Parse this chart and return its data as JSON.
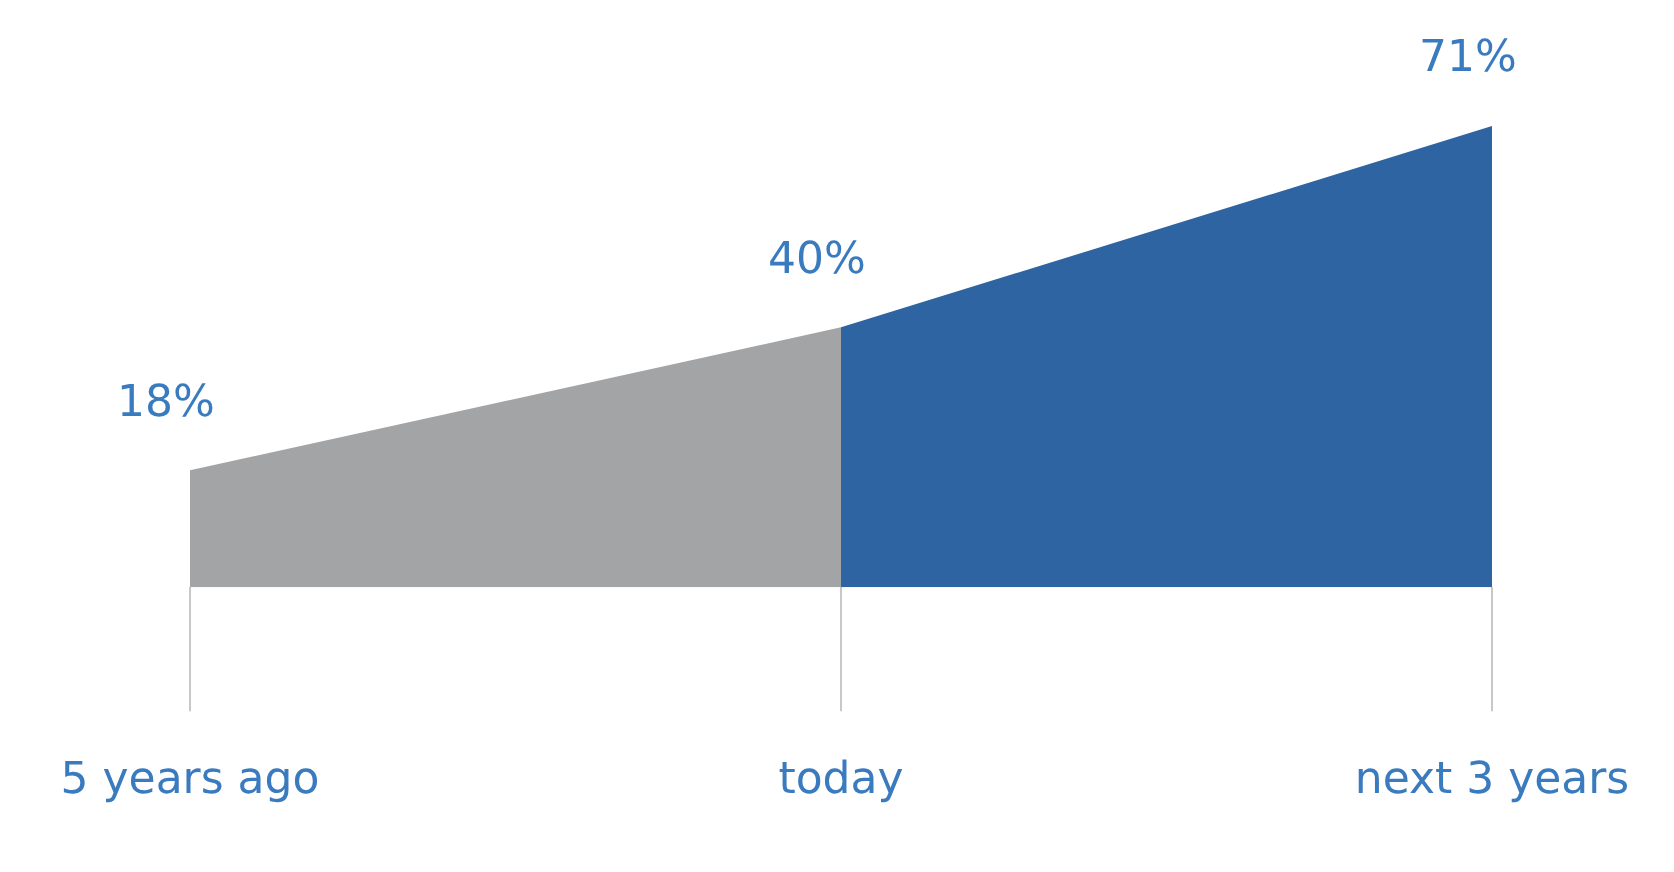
{
  "chart_data": {
    "type": "area",
    "categories": [
      "5 years ago",
      "today",
      "next 3 years"
    ],
    "series": [
      {
        "color": "#a3a4a6",
        "values": [
          18,
          40,
          null
        ],
        "value_labels": [
          "18%",
          null,
          null
        ]
      },
      {
        "color": "#2f64a3",
        "values": [
          null,
          40,
          71
        ],
        "value_labels": [
          null,
          "40%",
          "71%"
        ]
      }
    ],
    "marker": "none"
  }
}
